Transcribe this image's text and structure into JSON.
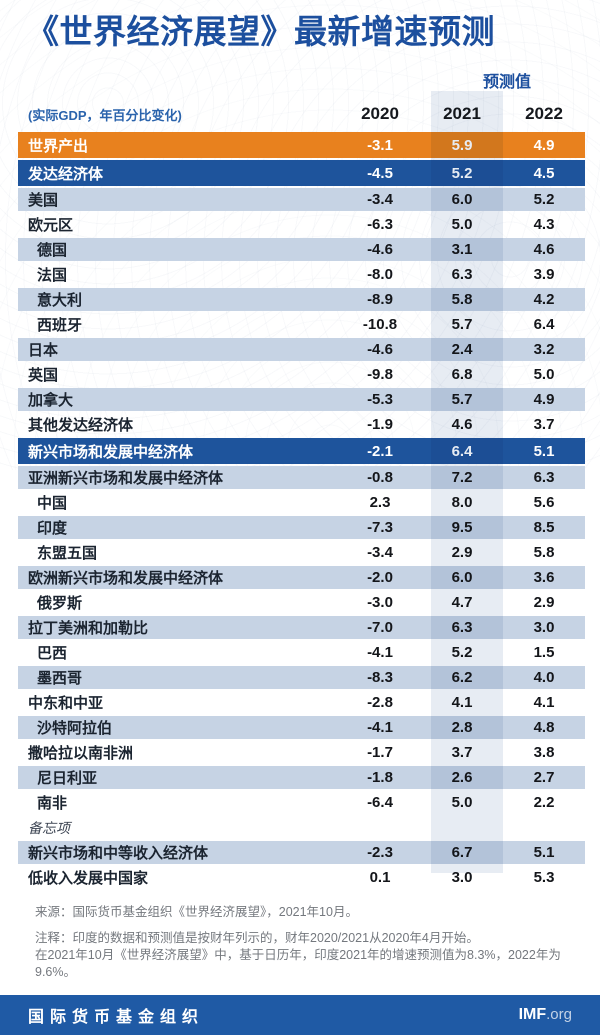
{
  "header": {
    "title": "《世界经济展望》最新增速预测",
    "forecast_label": "预测值",
    "subtitle": "(实际GDP，年百分比变化)"
  },
  "chart_data": {
    "type": "table",
    "title": "《世界经济展望》最新增速预测",
    "subtitle": "(实际GDP，年百分比变化)",
    "forecast_columns_note": "预测值 applies to 2021 and 2022",
    "columns": [
      "2020",
      "2021",
      "2022"
    ],
    "rows": [
      {
        "label": "世界产出",
        "values": [
          "-3.1",
          "5.9",
          "4.9"
        ],
        "style": "world",
        "indent": 0
      },
      {
        "label": "发达经济体",
        "values": [
          "-4.5",
          "5.2",
          "4.5"
        ],
        "style": "group",
        "indent": 0
      },
      {
        "label": "美国",
        "values": [
          "-3.4",
          "6.0",
          "5.2"
        ],
        "style": "blue",
        "indent": 0
      },
      {
        "label": "欧元区",
        "values": [
          "-6.3",
          "5.0",
          "4.3"
        ],
        "style": "white",
        "indent": 0
      },
      {
        "label": "德国",
        "values": [
          "-4.6",
          "3.1",
          "4.6"
        ],
        "style": "blue",
        "indent": 1
      },
      {
        "label": "法国",
        "values": [
          "-8.0",
          "6.3",
          "3.9"
        ],
        "style": "white",
        "indent": 1
      },
      {
        "label": "意大利",
        "values": [
          "-8.9",
          "5.8",
          "4.2"
        ],
        "style": "blue",
        "indent": 1
      },
      {
        "label": "西班牙",
        "values": [
          "-10.8",
          "5.7",
          "6.4"
        ],
        "style": "white",
        "indent": 1
      },
      {
        "label": "日本",
        "values": [
          "-4.6",
          "2.4",
          "3.2"
        ],
        "style": "blue",
        "indent": 0
      },
      {
        "label": "英国",
        "values": [
          "-9.8",
          "6.8",
          "5.0"
        ],
        "style": "white",
        "indent": 0
      },
      {
        "label": "加拿大",
        "values": [
          "-5.3",
          "5.7",
          "4.9"
        ],
        "style": "blue",
        "indent": 0
      },
      {
        "label": "其他发达经济体",
        "values": [
          "-1.9",
          "4.6",
          "3.7"
        ],
        "style": "white",
        "indent": 0
      },
      {
        "label": "新兴市场和发展中经济体",
        "values": [
          "-2.1",
          "6.4",
          "5.1"
        ],
        "style": "group",
        "indent": 0
      },
      {
        "label": "亚洲新兴市场和发展中经济体",
        "values": [
          "-0.8",
          "7.2",
          "6.3"
        ],
        "style": "blue",
        "indent": 0
      },
      {
        "label": "中国",
        "values": [
          "2.3",
          "8.0",
          "5.6"
        ],
        "style": "white",
        "indent": 1
      },
      {
        "label": "印度",
        "values": [
          "-7.3",
          "9.5",
          "8.5"
        ],
        "style": "blue",
        "indent": 1
      },
      {
        "label": "东盟五国",
        "values": [
          "-3.4",
          "2.9",
          "5.8"
        ],
        "style": "white",
        "indent": 1
      },
      {
        "label": "欧洲新兴市场和发展中经济体",
        "values": [
          "-2.0",
          "6.0",
          "3.6"
        ],
        "style": "blue",
        "indent": 0
      },
      {
        "label": "俄罗斯",
        "values": [
          "-3.0",
          "4.7",
          "2.9"
        ],
        "style": "white",
        "indent": 1
      },
      {
        "label": "拉丁美洲和加勒比",
        "values": [
          "-7.0",
          "6.3",
          "3.0"
        ],
        "style": "blue",
        "indent": 0
      },
      {
        "label": "巴西",
        "values": [
          "-4.1",
          "5.2",
          "1.5"
        ],
        "style": "white",
        "indent": 1
      },
      {
        "label": "墨西哥",
        "values": [
          "-8.3",
          "6.2",
          "4.0"
        ],
        "style": "blue",
        "indent": 1
      },
      {
        "label": "中东和中亚",
        "values": [
          "-2.8",
          "4.1",
          "4.1"
        ],
        "style": "white",
        "indent": 0
      },
      {
        "label": "沙特阿拉伯",
        "values": [
          "-4.1",
          "2.8",
          "4.8"
        ],
        "style": "blue",
        "indent": 1
      },
      {
        "label": "撒哈拉以南非洲",
        "values": [
          "-1.7",
          "3.7",
          "3.8"
        ],
        "style": "white",
        "indent": 0
      },
      {
        "label": "尼日利亚",
        "values": [
          "-1.8",
          "2.6",
          "2.7"
        ],
        "style": "blue",
        "indent": 1
      },
      {
        "label": "南非",
        "values": [
          "-6.4",
          "5.0",
          "2.2"
        ],
        "style": "white",
        "indent": 1
      },
      {
        "label": "备忘项",
        "values": [
          "",
          "",
          ""
        ],
        "style": "memo",
        "indent": 0
      },
      {
        "label": "新兴市场和中等收入经济体",
        "values": [
          "-2.3",
          "6.7",
          "5.1"
        ],
        "style": "blue",
        "indent": 0
      },
      {
        "label": "低收入发展中国家",
        "values": [
          "0.1",
          "3.0",
          "5.3"
        ],
        "style": "white",
        "indent": 0
      }
    ]
  },
  "footnotes": {
    "source": "来源：国际货币基金组织《世界经济展望》，2021年10月。",
    "note1": "注释：印度的数据和预测值是按财年列示的，财年2020/2021从2020年4月开始。",
    "note2": "在2021年10月《世界经济展望》中，基于日历年，印度2021年的增速预测值为8.3%，2022年为9.6%。"
  },
  "footer": {
    "org": "国际货币基金组织",
    "brand": "IMF",
    "brand_suffix": ".org"
  },
  "colors": {
    "accent_orange": "#E8811E",
    "accent_blue": "#1E549C",
    "row_light": "#C6D3E4",
    "title_blue": "#1C4F9E",
    "subtitle_blue": "#2A63AC",
    "footer_blue": "#1F5AA5"
  }
}
